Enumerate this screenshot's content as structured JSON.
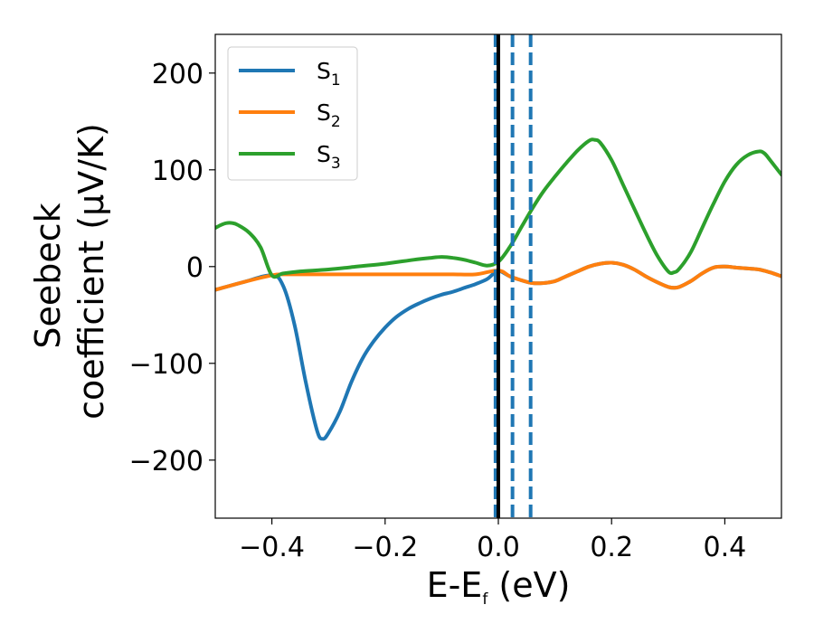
{
  "chart_data": {
    "type": "line",
    "xlabel_main": "E-E",
    "xlabel_sub": "f",
    "xlabel_unit": " (eV)",
    "ylabel_line1": "Seebeck",
    "ylabel_line2": "coefficient  (μV/K)",
    "xlim": [
      -0.5,
      0.5
    ],
    "ylim": [
      -260,
      240
    ],
    "xticks": [
      -0.4,
      -0.2,
      0.0,
      0.2,
      0.4
    ],
    "xtick_labels": [
      "−0.4",
      "−0.2",
      "0.0",
      "0.2",
      "0.4"
    ],
    "yticks": [
      200,
      100,
      0,
      -100,
      -200
    ],
    "ytick_labels": [
      "200",
      "100",
      "0",
      "−100",
      "−200"
    ],
    "legend_position": "upper-left",
    "fermi_line": {
      "x": 0.0,
      "color": "#000000"
    },
    "dashed_lines": {
      "x": [
        -0.005,
        0.025,
        0.057
      ],
      "color": "#1f77b4"
    },
    "series": [
      {
        "name": "S",
        "subscript": "1",
        "color": "#1f77b4",
        "points": [
          [
            -0.5,
            -24
          ],
          [
            -0.45,
            -16
          ],
          [
            -0.4,
            -9
          ],
          [
            -0.38,
            -20
          ],
          [
            -0.36,
            -60
          ],
          [
            -0.34,
            -120
          ],
          [
            -0.32,
            -170
          ],
          [
            -0.31,
            -178
          ],
          [
            -0.3,
            -172
          ],
          [
            -0.28,
            -150
          ],
          [
            -0.26,
            -120
          ],
          [
            -0.24,
            -95
          ],
          [
            -0.22,
            -77
          ],
          [
            -0.2,
            -63
          ],
          [
            -0.18,
            -52
          ],
          [
            -0.16,
            -44
          ],
          [
            -0.14,
            -38
          ],
          [
            -0.12,
            -33
          ],
          [
            -0.1,
            -29
          ],
          [
            -0.08,
            -26
          ],
          [
            -0.06,
            -22
          ],
          [
            -0.04,
            -18
          ],
          [
            -0.02,
            -13
          ],
          [
            -0.01,
            -8
          ],
          [
            0.0,
            -4
          ],
          [
            0.02,
            -10
          ],
          [
            0.04,
            -14
          ],
          [
            0.06,
            -17
          ],
          [
            0.08,
            -17
          ],
          [
            0.1,
            -15
          ],
          [
            0.12,
            -10
          ],
          [
            0.14,
            -5
          ],
          [
            0.16,
            0
          ],
          [
            0.18,
            3
          ],
          [
            0.2,
            4
          ],
          [
            0.22,
            2
          ],
          [
            0.24,
            -3
          ],
          [
            0.26,
            -10
          ],
          [
            0.28,
            -16
          ],
          [
            0.3,
            -21
          ],
          [
            0.31,
            -22
          ],
          [
            0.32,
            -21
          ],
          [
            0.34,
            -15
          ],
          [
            0.36,
            -7
          ],
          [
            0.38,
            -1
          ],
          [
            0.4,
            0
          ],
          [
            0.42,
            -1
          ],
          [
            0.44,
            -2
          ],
          [
            0.46,
            -3
          ],
          [
            0.48,
            -6
          ],
          [
            0.5,
            -10
          ]
        ]
      },
      {
        "name": "S",
        "subscript": "2",
        "color": "#ff7f0e",
        "points": [
          [
            -0.5,
            -24
          ],
          [
            -0.45,
            -16
          ],
          [
            -0.4,
            -9
          ],
          [
            -0.38,
            -8
          ],
          [
            -0.36,
            -8
          ],
          [
            -0.34,
            -8
          ],
          [
            -0.32,
            -8
          ],
          [
            -0.3,
            -8
          ],
          [
            -0.28,
            -8
          ],
          [
            -0.26,
            -8
          ],
          [
            -0.24,
            -8
          ],
          [
            -0.2,
            -8
          ],
          [
            -0.16,
            -8
          ],
          [
            -0.12,
            -8
          ],
          [
            -0.08,
            -8
          ],
          [
            -0.04,
            -8
          ],
          [
            0.0,
            -4
          ],
          [
            0.02,
            -10
          ],
          [
            0.04,
            -14
          ],
          [
            0.06,
            -17
          ],
          [
            0.08,
            -17
          ],
          [
            0.1,
            -15
          ],
          [
            0.12,
            -10
          ],
          [
            0.14,
            -5
          ],
          [
            0.16,
            0
          ],
          [
            0.18,
            3
          ],
          [
            0.2,
            4
          ],
          [
            0.22,
            2
          ],
          [
            0.24,
            -3
          ],
          [
            0.26,
            -10
          ],
          [
            0.28,
            -16
          ],
          [
            0.3,
            -21
          ],
          [
            0.31,
            -22
          ],
          [
            0.32,
            -21
          ],
          [
            0.34,
            -15
          ],
          [
            0.36,
            -7
          ],
          [
            0.38,
            -1
          ],
          [
            0.4,
            0
          ],
          [
            0.42,
            -1
          ],
          [
            0.44,
            -2
          ],
          [
            0.46,
            -3
          ],
          [
            0.48,
            -6
          ],
          [
            0.5,
            -10
          ]
        ]
      },
      {
        "name": "S",
        "subscript": "3",
        "color": "#2ca02c",
        "points": [
          [
            -0.5,
            40
          ],
          [
            -0.49,
            43
          ],
          [
            -0.48,
            45
          ],
          [
            -0.47,
            45
          ],
          [
            -0.46,
            43
          ],
          [
            -0.44,
            35
          ],
          [
            -0.42,
            20
          ],
          [
            -0.4,
            -9
          ],
          [
            -0.38,
            -7
          ],
          [
            -0.35,
            -5
          ],
          [
            -0.3,
            -3
          ],
          [
            -0.25,
            0
          ],
          [
            -0.2,
            3
          ],
          [
            -0.15,
            7
          ],
          [
            -0.12,
            9
          ],
          [
            -0.1,
            10
          ],
          [
            -0.08,
            9
          ],
          [
            -0.06,
            7
          ],
          [
            -0.04,
            4
          ],
          [
            -0.02,
            1
          ],
          [
            0.0,
            5
          ],
          [
            0.02,
            20
          ],
          [
            0.04,
            40
          ],
          [
            0.06,
            60
          ],
          [
            0.08,
            78
          ],
          [
            0.1,
            93
          ],
          [
            0.12,
            107
          ],
          [
            0.14,
            120
          ],
          [
            0.16,
            130
          ],
          [
            0.17,
            131
          ],
          [
            0.18,
            128
          ],
          [
            0.2,
            110
          ],
          [
            0.22,
            85
          ],
          [
            0.24,
            60
          ],
          [
            0.26,
            35
          ],
          [
            0.28,
            12
          ],
          [
            0.3,
            -5
          ],
          [
            0.31,
            -6
          ],
          [
            0.32,
            -2
          ],
          [
            0.34,
            15
          ],
          [
            0.36,
            40
          ],
          [
            0.38,
            65
          ],
          [
            0.4,
            88
          ],
          [
            0.42,
            105
          ],
          [
            0.44,
            115
          ],
          [
            0.46,
            119
          ],
          [
            0.47,
            117
          ],
          [
            0.48,
            110
          ],
          [
            0.5,
            95
          ]
        ]
      }
    ]
  }
}
